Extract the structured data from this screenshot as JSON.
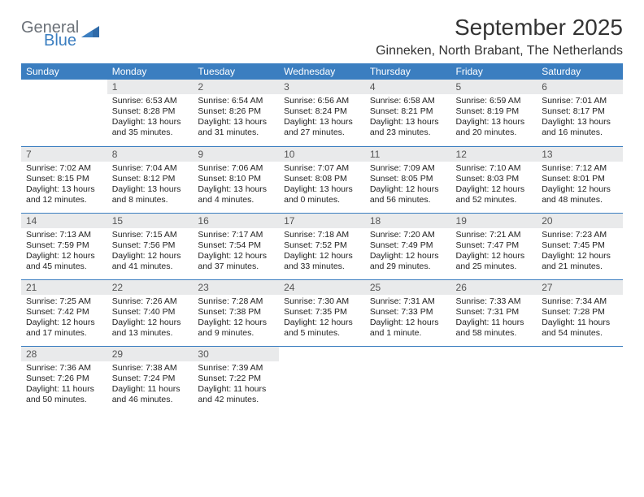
{
  "logo": {
    "general": "General",
    "blue": "Blue"
  },
  "title": "September 2025",
  "location": "Ginneken, North Brabant, The Netherlands",
  "colors": {
    "header_bg": "#3b7ec0",
    "header_fg": "#ffffff",
    "daynum_bg": "#e9eaeb",
    "row_border": "#3b7ec0",
    "logo_gray": "#6b7178",
    "logo_blue": "#3b7ec0"
  },
  "weekdays": [
    "Sunday",
    "Monday",
    "Tuesday",
    "Wednesday",
    "Thursday",
    "Friday",
    "Saturday"
  ],
  "first_weekday_index": 1,
  "days": [
    {
      "n": 1,
      "sunrise": "6:53 AM",
      "sunset": "8:28 PM",
      "daylight": "13 hours and 35 minutes."
    },
    {
      "n": 2,
      "sunrise": "6:54 AM",
      "sunset": "8:26 PM",
      "daylight": "13 hours and 31 minutes."
    },
    {
      "n": 3,
      "sunrise": "6:56 AM",
      "sunset": "8:24 PM",
      "daylight": "13 hours and 27 minutes."
    },
    {
      "n": 4,
      "sunrise": "6:58 AM",
      "sunset": "8:21 PM",
      "daylight": "13 hours and 23 minutes."
    },
    {
      "n": 5,
      "sunrise": "6:59 AM",
      "sunset": "8:19 PM",
      "daylight": "13 hours and 20 minutes."
    },
    {
      "n": 6,
      "sunrise": "7:01 AM",
      "sunset": "8:17 PM",
      "daylight": "13 hours and 16 minutes."
    },
    {
      "n": 7,
      "sunrise": "7:02 AM",
      "sunset": "8:15 PM",
      "daylight": "13 hours and 12 minutes."
    },
    {
      "n": 8,
      "sunrise": "7:04 AM",
      "sunset": "8:12 PM",
      "daylight": "13 hours and 8 minutes."
    },
    {
      "n": 9,
      "sunrise": "7:06 AM",
      "sunset": "8:10 PM",
      "daylight": "13 hours and 4 minutes."
    },
    {
      "n": 10,
      "sunrise": "7:07 AM",
      "sunset": "8:08 PM",
      "daylight": "13 hours and 0 minutes."
    },
    {
      "n": 11,
      "sunrise": "7:09 AM",
      "sunset": "8:05 PM",
      "daylight": "12 hours and 56 minutes."
    },
    {
      "n": 12,
      "sunrise": "7:10 AM",
      "sunset": "8:03 PM",
      "daylight": "12 hours and 52 minutes."
    },
    {
      "n": 13,
      "sunrise": "7:12 AM",
      "sunset": "8:01 PM",
      "daylight": "12 hours and 48 minutes."
    },
    {
      "n": 14,
      "sunrise": "7:13 AM",
      "sunset": "7:59 PM",
      "daylight": "12 hours and 45 minutes."
    },
    {
      "n": 15,
      "sunrise": "7:15 AM",
      "sunset": "7:56 PM",
      "daylight": "12 hours and 41 minutes."
    },
    {
      "n": 16,
      "sunrise": "7:17 AM",
      "sunset": "7:54 PM",
      "daylight": "12 hours and 37 minutes."
    },
    {
      "n": 17,
      "sunrise": "7:18 AM",
      "sunset": "7:52 PM",
      "daylight": "12 hours and 33 minutes."
    },
    {
      "n": 18,
      "sunrise": "7:20 AM",
      "sunset": "7:49 PM",
      "daylight": "12 hours and 29 minutes."
    },
    {
      "n": 19,
      "sunrise": "7:21 AM",
      "sunset": "7:47 PM",
      "daylight": "12 hours and 25 minutes."
    },
    {
      "n": 20,
      "sunrise": "7:23 AM",
      "sunset": "7:45 PM",
      "daylight": "12 hours and 21 minutes."
    },
    {
      "n": 21,
      "sunrise": "7:25 AM",
      "sunset": "7:42 PM",
      "daylight": "12 hours and 17 minutes."
    },
    {
      "n": 22,
      "sunrise": "7:26 AM",
      "sunset": "7:40 PM",
      "daylight": "12 hours and 13 minutes."
    },
    {
      "n": 23,
      "sunrise": "7:28 AM",
      "sunset": "7:38 PM",
      "daylight": "12 hours and 9 minutes."
    },
    {
      "n": 24,
      "sunrise": "7:30 AM",
      "sunset": "7:35 PM",
      "daylight": "12 hours and 5 minutes."
    },
    {
      "n": 25,
      "sunrise": "7:31 AM",
      "sunset": "7:33 PM",
      "daylight": "12 hours and 1 minute."
    },
    {
      "n": 26,
      "sunrise": "7:33 AM",
      "sunset": "7:31 PM",
      "daylight": "11 hours and 58 minutes."
    },
    {
      "n": 27,
      "sunrise": "7:34 AM",
      "sunset": "7:28 PM",
      "daylight": "11 hours and 54 minutes."
    },
    {
      "n": 28,
      "sunrise": "7:36 AM",
      "sunset": "7:26 PM",
      "daylight": "11 hours and 50 minutes."
    },
    {
      "n": 29,
      "sunrise": "7:38 AM",
      "sunset": "7:24 PM",
      "daylight": "11 hours and 46 minutes."
    },
    {
      "n": 30,
      "sunrise": "7:39 AM",
      "sunset": "7:22 PM",
      "daylight": "11 hours and 42 minutes."
    }
  ],
  "labels": {
    "sunrise": "Sunrise:",
    "sunset": "Sunset:",
    "daylight": "Daylight:"
  }
}
